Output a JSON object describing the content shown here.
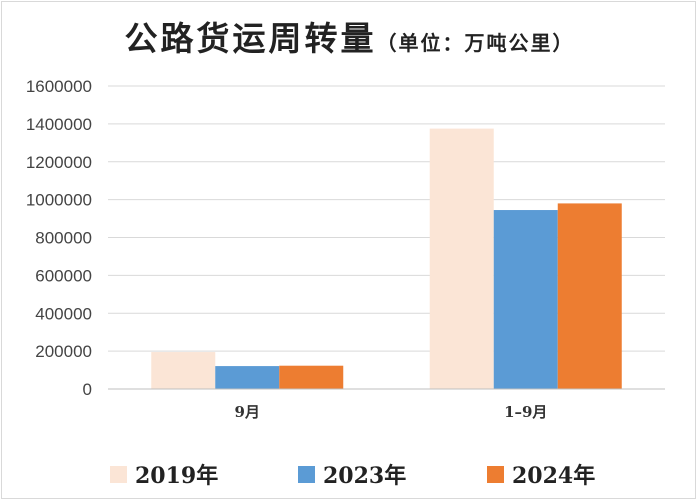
{
  "title": {
    "main": "公路货运周转量",
    "unit": "（单位：万吨公里）"
  },
  "colors": {
    "s2019": "#FBE5D6",
    "s2023": "#5B9BD5",
    "s2024": "#ED7D31",
    "grid": "#d9d9d9"
  },
  "chart_data": {
    "type": "bar",
    "categories": [
      "9月",
      "1–9月"
    ],
    "series": [
      {
        "name": "2019年",
        "values": [
          195000,
          1375000
        ],
        "color": "#FBE5D6"
      },
      {
        "name": "2023年",
        "values": [
          121000,
          945000
        ],
        "color": "#5B9BD5"
      },
      {
        "name": "2024年",
        "values": [
          123000,
          980000
        ],
        "color": "#ED7D31"
      }
    ],
    "yticks": [
      0,
      200000,
      400000,
      600000,
      800000,
      1000000,
      1200000,
      1400000,
      1600000
    ],
    "ylim": [
      0,
      1600000
    ],
    "grid": true,
    "legend": "bottom",
    "xlabel": "",
    "ylabel": ""
  }
}
